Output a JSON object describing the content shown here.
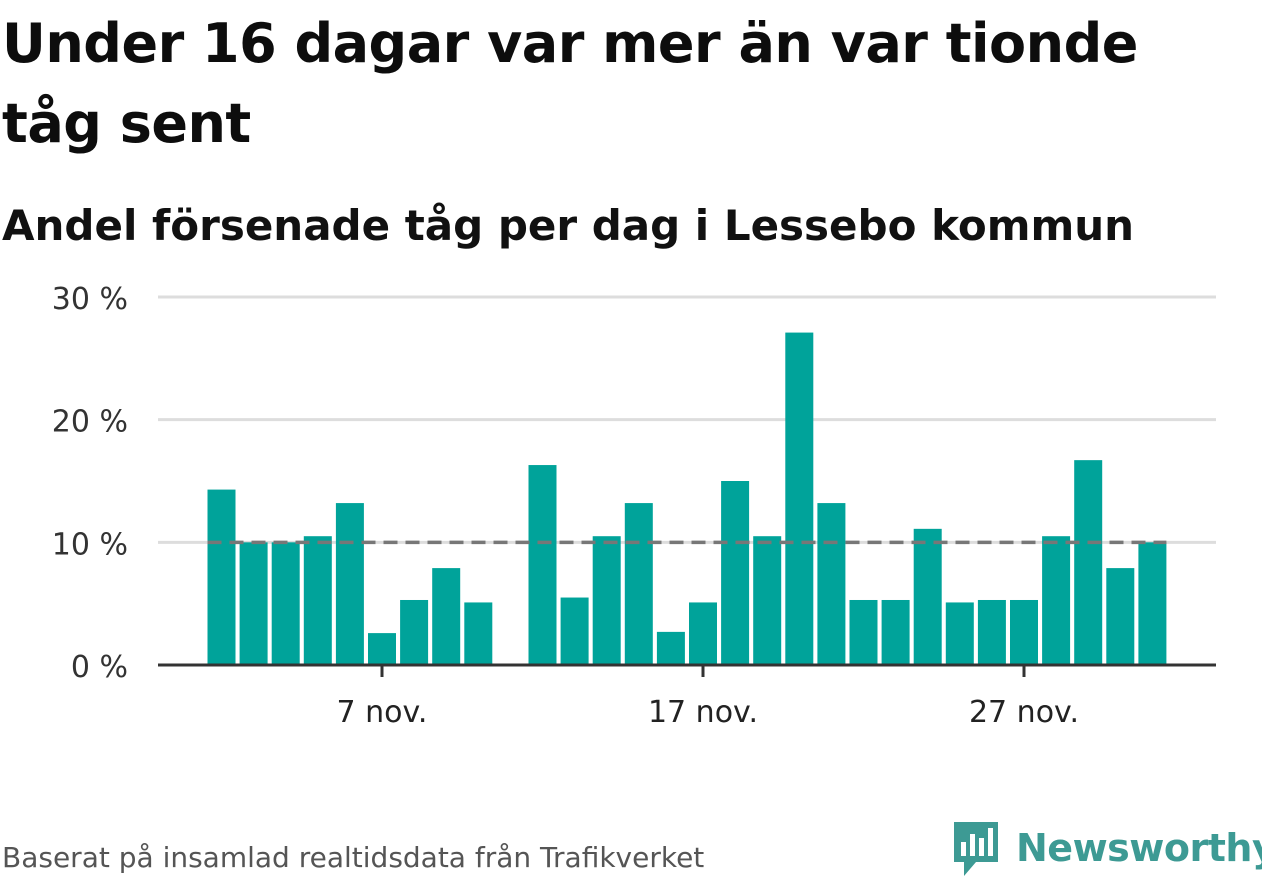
{
  "title": "Under 16 dagar var mer än var tionde tåg sent",
  "subtitle": "Andel försenade tåg per dag i Lessebo kommun",
  "footer": "Baserat på insamlad realtidsdata från Trafikverket",
  "brand": "Newsworthy",
  "colors": {
    "bar": "#00a39a",
    "reference_line": "#777777",
    "grid": "#dddddd",
    "axis": "#333333",
    "brand": "#3d9a94"
  },
  "chart_data": {
    "type": "bar",
    "x": [
      "2023-11-02",
      "2023-11-03",
      "2023-11-04",
      "2023-11-05",
      "2023-11-06",
      "2023-11-07",
      "2023-11-08",
      "2023-11-09",
      "2023-11-10",
      "2023-11-11",
      "2023-11-12",
      "2023-11-13",
      "2023-11-14",
      "2023-11-15",
      "2023-11-16",
      "2023-11-17",
      "2023-11-18",
      "2023-11-19",
      "2023-11-20",
      "2023-11-21",
      "2023-11-22",
      "2023-11-23",
      "2023-11-24",
      "2023-11-25",
      "2023-11-26",
      "2023-11-27",
      "2023-11-28",
      "2023-11-29",
      "2023-11-30",
      "2023-12-01"
    ],
    "values": [
      14.3,
      10.0,
      10.0,
      10.5,
      13.2,
      2.6,
      5.3,
      7.9,
      5.1,
      null,
      16.3,
      5.5,
      10.5,
      13.2,
      2.7,
      5.1,
      15.0,
      10.5,
      27.1,
      13.2,
      5.3,
      5.3,
      11.1,
      5.1,
      5.3,
      5.3,
      10.5,
      16.7,
      7.9,
      10.0
    ],
    "reference_line": 10,
    "xlabel": "",
    "ylabel": "",
    "ylim": [
      0,
      30
    ],
    "yticks": [
      0,
      10,
      20,
      30
    ],
    "ytick_labels": [
      "0 %",
      "10 %",
      "20 %",
      "30 %"
    ],
    "xticks": [
      "7 nov.",
      "17 nov.",
      "27 nov."
    ],
    "grid": true
  }
}
